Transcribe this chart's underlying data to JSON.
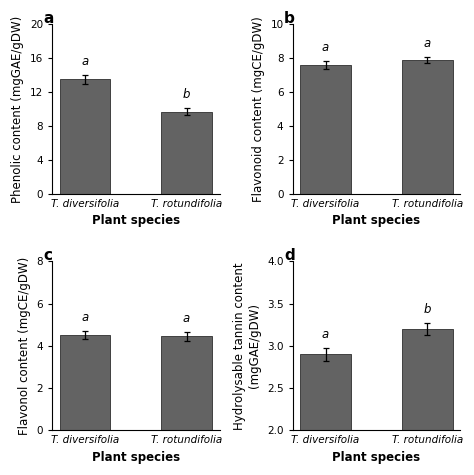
{
  "panels": [
    {
      "label": "a",
      "ylabel": "Phenolic content (mgGAE/gDW)",
      "xlabel": "Plant species",
      "ylim": [
        0,
        20
      ],
      "yticks": [
        0,
        4,
        8,
        12,
        16,
        20
      ],
      "categories": [
        "T. diversifolia",
        "T. rotundifolia"
      ],
      "values": [
        13.5,
        9.7
      ],
      "errors": [
        0.5,
        0.4
      ],
      "sig_labels": [
        "a",
        "b"
      ]
    },
    {
      "label": "b",
      "ylabel": "Flavonoid content (mgCE/gDW)",
      "xlabel": "Plant species",
      "ylim": [
        0,
        10
      ],
      "yticks": [
        0,
        2,
        4,
        6,
        8,
        10
      ],
      "categories": [
        "T. diversifolia",
        "T. rotundifolia"
      ],
      "values": [
        7.6,
        7.9
      ],
      "errors": [
        0.25,
        0.2
      ],
      "sig_labels": [
        "a",
        "a"
      ]
    },
    {
      "label": "c",
      "ylabel": "Flavonol content (mgCE/gDW)",
      "xlabel": "Plant species",
      "ylim": [
        0,
        8
      ],
      "yticks": [
        0,
        2,
        4,
        6,
        8
      ],
      "categories": [
        "T. diversifolia",
        "T. rotundifolia"
      ],
      "values": [
        4.5,
        4.45
      ],
      "errors": [
        0.2,
        0.2
      ],
      "sig_labels": [
        "a",
        "a"
      ]
    },
    {
      "label": "d",
      "ylabel": "Hydrolysable tannin content\n(mgGAE/gDW)",
      "xlabel": "Plant species",
      "ylim": [
        2,
        4
      ],
      "yticks": [
        2.0,
        2.5,
        3.0,
        3.5,
        4.0
      ],
      "categories": [
        "T. diversifolia",
        "T. rotundifolia"
      ],
      "values": [
        2.9,
        3.2
      ],
      "errors": [
        0.08,
        0.07
      ],
      "sig_labels": [
        "a",
        "b"
      ]
    }
  ],
  "bar_color": "#636363",
  "bar_width": 0.5,
  "bar_edgecolor": "#404040",
  "tick_fontsize": 7.5,
  "label_fontsize": 8.5,
  "panel_label_fontsize": 11,
  "sig_label_fontsize": 8.5
}
